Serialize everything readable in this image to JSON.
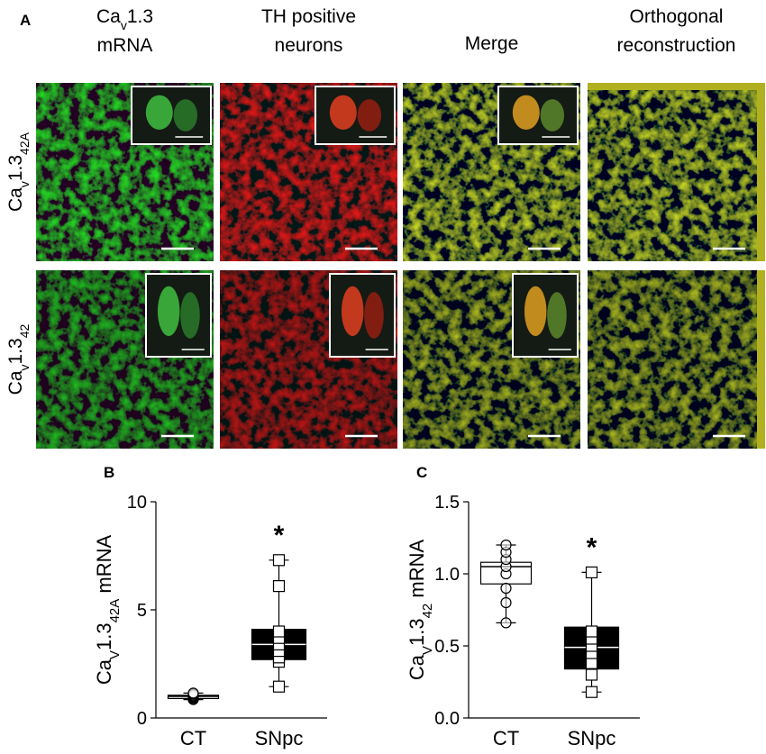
{
  "panel_a": {
    "label": "A",
    "columns": [
      [
        [
          {
            "text": "Ca"
          },
          {
            "text": "v",
            "sub": true
          },
          {
            "text": "1.3"
          }
        ],
        [
          {
            "text": "mRNA"
          }
        ]
      ],
      [
        [
          {
            "text": "TH positive"
          }
        ],
        [
          {
            "text": "neurons"
          }
        ]
      ],
      [
        [
          {
            "text": "Merge"
          }
        ]
      ],
      [
        [
          {
            "text": "Orthogonal"
          }
        ],
        [
          {
            "text": "reconstruction"
          }
        ]
      ]
    ],
    "rows": [
      [
        {
          "text": "Ca"
        },
        {
          "text": "v",
          "sub": true
        },
        {
          "text": "1.3"
        },
        {
          "text": "42A",
          "sub": true
        }
      ],
      [
        {
          "text": "Ca"
        },
        {
          "text": "v",
          "sub": true
        },
        {
          "text": "1.3"
        },
        {
          "text": "42",
          "sub": true
        }
      ]
    ]
  },
  "chart_data": [
    {
      "type": "box",
      "label": "B",
      "ylabel": [
        {
          "text": "Ca"
        },
        {
          "text": "V",
          "sub": true
        },
        {
          "text": "1.3"
        },
        {
          "text": "42A",
          "sub": true
        },
        {
          "text": " mRNA"
        }
      ],
      "ylim": [
        0,
        10
      ],
      "yticks": [
        0,
        5,
        10
      ],
      "categories": [
        "CT",
        "SNpc"
      ],
      "boxes": [
        {
          "whisker_low": 0.85,
          "q1": 0.9,
          "median": 1.0,
          "q3": 1.05,
          "whisker_high": 1.15,
          "fill": "#ffffff",
          "marker": "circle",
          "points": [
            0.85,
            0.9,
            0.95,
            1.0,
            1.05,
            1.1,
            1.15
          ]
        },
        {
          "whisker_low": 1.45,
          "q1": 2.7,
          "median": 3.4,
          "q3": 4.1,
          "whisker_high": 7.3,
          "fill": "#000000",
          "marker": "square",
          "points": [
            1.45,
            2.6,
            2.8,
            3.1,
            3.4,
            3.7,
            4.0,
            6.1,
            7.3
          ]
        }
      ],
      "annotations": [
        {
          "text": "*",
          "x": "SNpc"
        }
      ]
    },
    {
      "type": "box",
      "label": "C",
      "ylabel": [
        {
          "text": "Ca"
        },
        {
          "text": "V",
          "sub": true
        },
        {
          "text": "1.3"
        },
        {
          "text": "42",
          "sub": true
        },
        {
          "text": " mRNA"
        }
      ],
      "ylim": [
        0,
        1.5
      ],
      "yticks": [
        {
          "value": 0,
          "label": "0.0"
        },
        0.5,
        {
          "value": 1,
          "label": "1.0"
        },
        1.5
      ],
      "categories": [
        "CT",
        "SNpc"
      ],
      "boxes": [
        {
          "whisker_low": 0.66,
          "q1": 0.93,
          "median": 1.05,
          "q3": 1.08,
          "whisker_high": 1.2,
          "fill": "#ffffff",
          "marker": "circle",
          "points": [
            0.66,
            0.8,
            0.9,
            1.0,
            1.05,
            1.1,
            1.15,
            1.2
          ]
        },
        {
          "whisker_low": 0.18,
          "q1": 0.34,
          "median": 0.49,
          "q3": 0.63,
          "whisker_high": 1.01,
          "fill": "#000000",
          "marker": "square",
          "points": [
            0.18,
            0.3,
            0.38,
            0.45,
            0.5,
            0.55,
            0.6,
            1.01
          ]
        }
      ],
      "annotations": [
        {
          "text": "*",
          "x": "SNpc"
        }
      ]
    }
  ]
}
